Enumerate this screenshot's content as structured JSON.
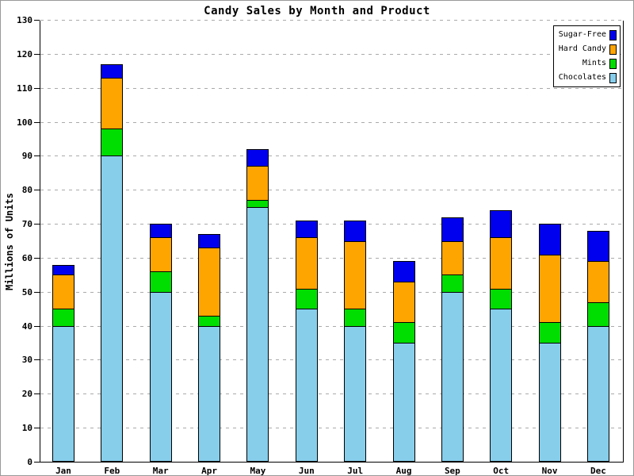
{
  "chart_data": {
    "type": "bar",
    "stacked": true,
    "title": "Candy Sales by Month and Product",
    "xlabel": "",
    "ylabel": "Millions of Units",
    "categories": [
      "Jan",
      "Feb",
      "Mar",
      "Apr",
      "May",
      "Jun",
      "Jul",
      "Aug",
      "Sep",
      "Oct",
      "Nov",
      "Dec"
    ],
    "series": [
      {
        "name": "Chocolates",
        "color": "#87CEEB",
        "values": [
          40,
          90,
          50,
          40,
          75,
          45,
          40,
          35,
          50,
          45,
          35,
          40
        ]
      },
      {
        "name": "Mints",
        "color": "#00DD00",
        "values": [
          5,
          8,
          6,
          3,
          2,
          6,
          5,
          6,
          5,
          6,
          6,
          7
        ]
      },
      {
        "name": "Hard Candy",
        "color": "#FFA500",
        "values": [
          10,
          15,
          10,
          20,
          10,
          15,
          20,
          12,
          10,
          15,
          20,
          12
        ]
      },
      {
        "name": "Sugar-Free",
        "color": "#0000EE",
        "values": [
          3,
          4,
          4,
          4,
          5,
          5,
          6,
          6,
          7,
          8,
          9,
          9
        ]
      }
    ],
    "totals": [
      58,
      117,
      70,
      67,
      92,
      71,
      71,
      59,
      72,
      74,
      70,
      68
    ],
    "ylim": [
      0,
      130
    ],
    "ytick_step": 10,
    "grid": "dashed-horizontal",
    "grid_color": "#aaaaaa",
    "axis_color": "#000000",
    "legend": {
      "position": "top-right",
      "entries": [
        "Sugar-Free",
        "Hard Candy",
        "Mints",
        "Chocolates"
      ]
    }
  }
}
